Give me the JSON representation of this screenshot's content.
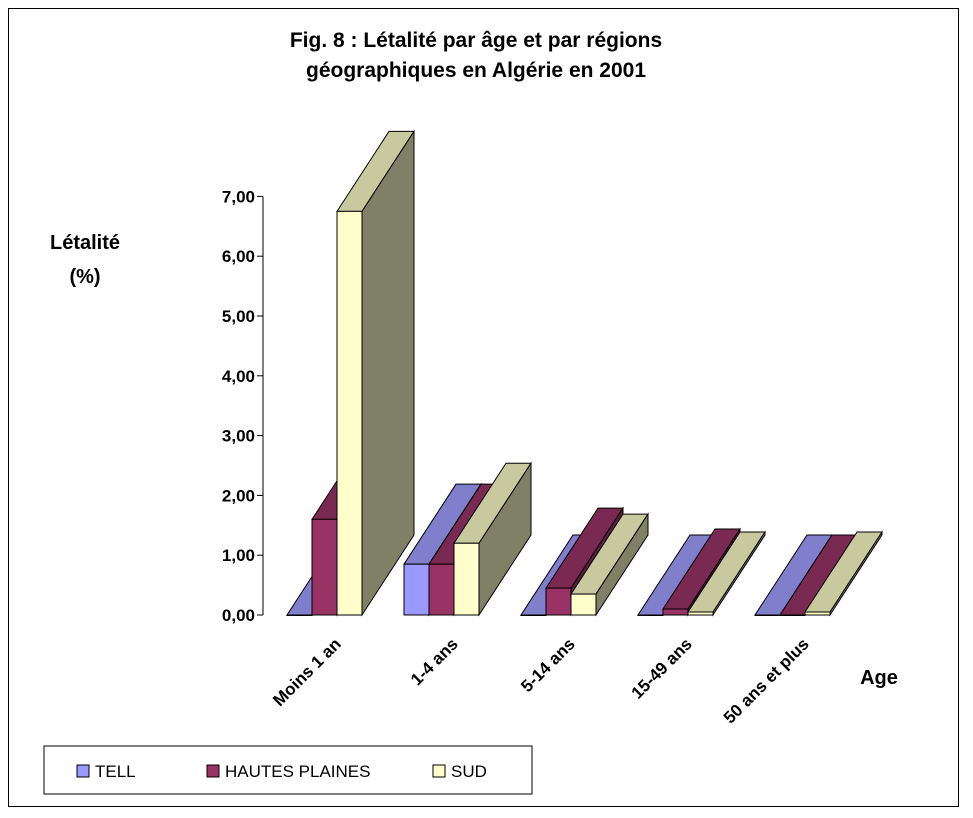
{
  "chart_data": {
    "type": "bar",
    "title_lines": [
      "Fig. 8 : Létalité par âge et par régions",
      "géographiques en Algérie en 2001"
    ],
    "ylabel_lines": [
      "Létalité",
      "(%)"
    ],
    "xlabel": "Age",
    "ylim": [
      0,
      7
    ],
    "yticks": [
      "0,00",
      "1,00",
      "2,00",
      "3,00",
      "4,00",
      "5,00",
      "6,00",
      "7,00"
    ],
    "categories": [
      "Moins 1 an",
      "1-4 ans",
      "5-14 ans",
      "15-49 ans",
      "50 ans et plus"
    ],
    "series": [
      {
        "name": "TELL",
        "values": [
          0,
          0.85,
          0,
          0,
          0
        ]
      },
      {
        "name": "HAUTES PLAINES",
        "values": [
          1.6,
          0.85,
          0.45,
          0.1,
          0
        ]
      },
      {
        "name": "SUD",
        "values": [
          6.75,
          1.2,
          0.35,
          0.05,
          0.05
        ]
      }
    ],
    "legend_position": "bottom-left",
    "colors": {
      "TELL": {
        "front": "#9999ff",
        "top": "#7f7fcc",
        "side": "#6666aa"
      },
      "HAUTES PLAINES": {
        "front": "#993366",
        "top": "#7a2952",
        "side": "#5c1f3d"
      },
      "SUD": {
        "front": "#ffffcc",
        "top": "#c9c9a0",
        "side": "#808066"
      }
    },
    "grid": false
  }
}
